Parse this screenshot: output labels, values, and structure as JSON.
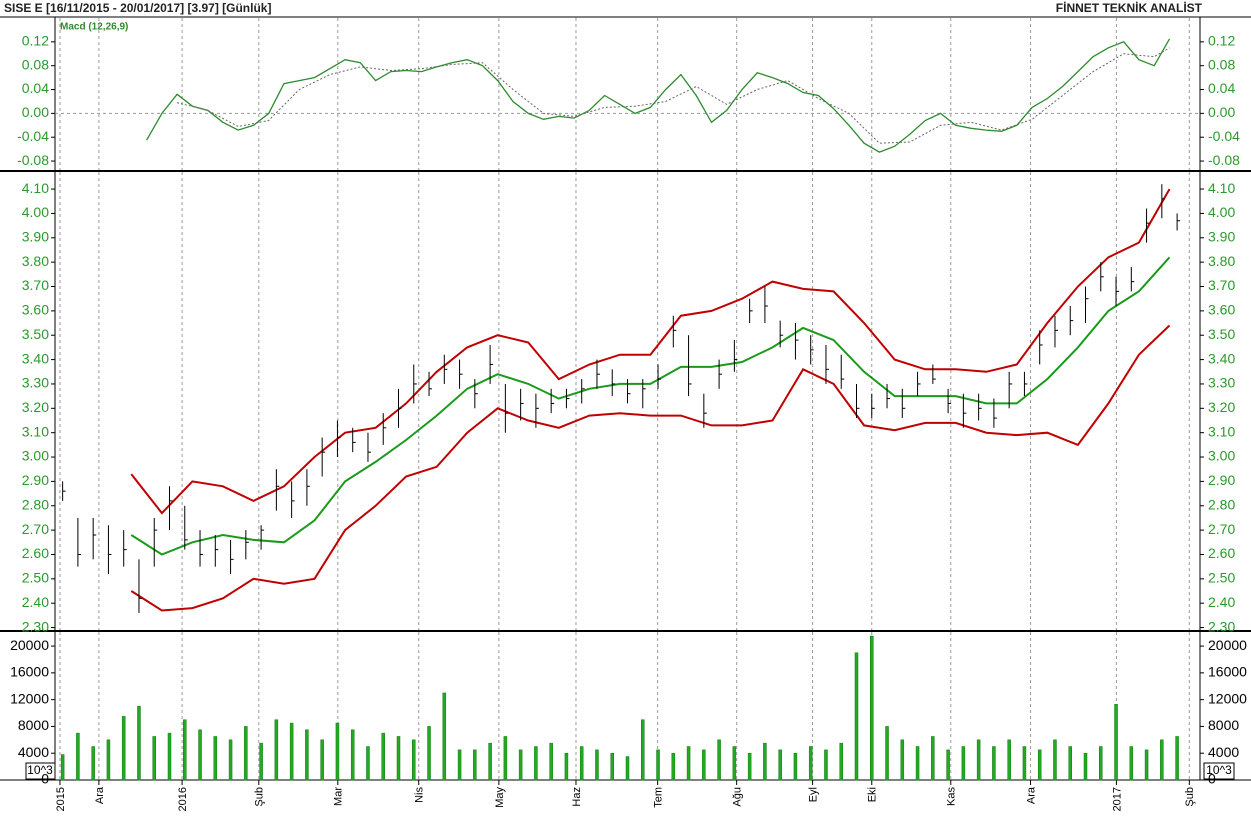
{
  "header": {
    "title": "SISE  E  [16/11/2015 - 20/01/2017]  [3.97]  [Günlük]",
    "brand": "FİNNET TEKNİK ANALİST"
  },
  "chart_data": [
    {
      "type": "line",
      "title": "Macd (12,26,9)",
      "ylim": [
        -0.095,
        0.16
      ],
      "yticks": [
        -0.08,
        -0.04,
        {
          "value": 0,
          "label": "0.00"
        },
        0.04,
        0.08,
        0.12
      ],
      "series": [
        {
          "color": "#2e8b2e",
          "style": "solid",
          "x": [
            24,
            28,
            32,
            36,
            40,
            44,
            48,
            52,
            56,
            60,
            64,
            68,
            72,
            76,
            80,
            84,
            88,
            92,
            96,
            100,
            104,
            108,
            112,
            116,
            120,
            124,
            128,
            132,
            136,
            140,
            144,
            148,
            152,
            156,
            160,
            164,
            168,
            172,
            176,
            180,
            184,
            188,
            192,
            196,
            200,
            204,
            208,
            212,
            216,
            220,
            224,
            228,
            232,
            236,
            240,
            244,
            248,
            252,
            256,
            260,
            264,
            268,
            272,
            276,
            280,
            284,
            288,
            292
          ],
          "values": [
            -0.045,
            0.0,
            0.032,
            0.012,
            0.005,
            -0.015,
            -0.028,
            -0.02,
            0.0,
            0.05,
            0.055,
            0.06,
            0.075,
            0.09,
            0.085,
            0.055,
            0.07,
            0.072,
            0.07,
            0.078,
            0.085,
            0.09,
            0.08,
            0.055,
            0.02,
            0.0,
            -0.01,
            -0.005,
            -0.008,
            0.005,
            0.03,
            0.015,
            0.0,
            0.01,
            0.04,
            0.065,
            0.03,
            -0.015,
            0.005,
            0.04,
            0.068,
            0.06,
            0.05,
            0.035,
            0.03,
            0.008,
            -0.02,
            -0.05,
            -0.065,
            -0.055,
            -0.035,
            -0.012,
            0.0,
            -0.02,
            -0.025,
            -0.028,
            -0.03,
            -0.02,
            0.01,
            0.025,
            0.045,
            0.07,
            0.095,
            0.11,
            0.12,
            0.09,
            0.08,
            0.125
          ]
        },
        {
          "color": "#666666",
          "style": "dotted",
          "x": [
            32,
            40,
            48,
            56,
            64,
            72,
            80,
            88,
            96,
            104,
            112,
            120,
            128,
            136,
            144,
            152,
            160,
            168,
            176,
            184,
            192,
            200,
            208,
            216,
            224,
            232,
            240,
            248,
            256,
            264,
            272,
            280,
            288,
            292
          ],
          "values": [
            0.018,
            0.005,
            -0.022,
            -0.012,
            0.04,
            0.065,
            0.078,
            0.072,
            0.075,
            0.082,
            0.085,
            0.04,
            0.0,
            -0.005,
            0.01,
            0.012,
            0.02,
            0.045,
            0.015,
            0.04,
            0.055,
            0.025,
            0.0,
            -0.05,
            -0.048,
            -0.02,
            -0.015,
            -0.028,
            -0.01,
            0.03,
            0.07,
            0.1,
            0.095,
            0.11
          ]
        }
      ]
    },
    {
      "type": "ohlc",
      "color": "#000000",
      "ylim": [
        2.29,
        4.17
      ],
      "yticks": [
        {
          "value": 2.3,
          "label": "2.30"
        },
        {
          "value": 2.4,
          "label": "2.40"
        },
        {
          "value": 2.5,
          "label": "2.50"
        },
        {
          "value": 2.6,
          "label": "2.60"
        },
        {
          "value": 2.7,
          "label": "2.70"
        },
        {
          "value": 2.8,
          "label": "2.80"
        },
        {
          "value": 2.9,
          "label": "2.90"
        },
        {
          "value": 3.0,
          "label": "3.00"
        },
        {
          "value": 3.1,
          "label": "3.10"
        },
        {
          "value": 3.2,
          "label": "3.20"
        },
        {
          "value": 3.3,
          "label": "3.30"
        },
        {
          "value": 3.4,
          "label": "3.40"
        },
        {
          "value": 3.5,
          "label": "3.50"
        },
        {
          "value": 3.6,
          "label": "3.60"
        },
        {
          "value": 3.7,
          "label": "3.70"
        },
        {
          "value": 3.8,
          "label": "3.80"
        },
        {
          "value": 3.9,
          "label": "3.90"
        },
        {
          "value": 4.0,
          "label": "4.00"
        },
        {
          "value": 4.1,
          "label": "4.10"
        }
      ],
      "x": [
        2,
        6,
        10,
        14,
        18,
        22,
        26,
        30,
        34,
        38,
        42,
        46,
        50,
        54,
        58,
        62,
        66,
        70,
        74,
        78,
        82,
        86,
        90,
        94,
        98,
        102,
        106,
        110,
        114,
        118,
        122,
        126,
        130,
        134,
        138,
        142,
        146,
        150,
        154,
        158,
        162,
        166,
        170,
        174,
        178,
        182,
        186,
        190,
        194,
        198,
        202,
        206,
        210,
        214,
        218,
        222,
        226,
        230,
        234,
        238,
        242,
        246,
        250,
        254,
        258,
        262,
        266,
        270,
        274,
        278,
        282,
        286,
        290,
        294
      ],
      "high": [
        2.9,
        2.75,
        2.75,
        2.72,
        2.7,
        2.58,
        2.75,
        2.88,
        2.8,
        2.7,
        2.68,
        2.66,
        2.7,
        2.72,
        2.95,
        2.9,
        2.95,
        3.08,
        3.15,
        3.12,
        3.1,
        3.18,
        3.28,
        3.38,
        3.35,
        3.42,
        3.4,
        3.32,
        3.46,
        3.3,
        3.28,
        3.26,
        3.28,
        3.28,
        3.32,
        3.4,
        3.36,
        3.32,
        3.32,
        3.38,
        3.58,
        3.5,
        3.26,
        3.4,
        3.48,
        3.65,
        3.7,
        3.56,
        3.55,
        3.5,
        3.46,
        3.42,
        3.3,
        3.26,
        3.3,
        3.28,
        3.35,
        3.38,
        3.28,
        3.26,
        3.26,
        3.24,
        3.35,
        3.35,
        3.52,
        3.58,
        3.62,
        3.7,
        3.8,
        3.74,
        3.78,
        4.02,
        4.12,
        4.0
      ],
      "low": [
        2.82,
        2.55,
        2.58,
        2.52,
        2.55,
        2.36,
        2.55,
        2.7,
        2.62,
        2.55,
        2.55,
        2.52,
        2.58,
        2.62,
        2.78,
        2.75,
        2.8,
        2.92,
        3.0,
        3.02,
        2.98,
        3.05,
        3.12,
        3.22,
        3.25,
        3.3,
        3.28,
        3.2,
        3.3,
        3.1,
        3.15,
        3.12,
        3.18,
        3.2,
        3.22,
        3.28,
        3.25,
        3.22,
        3.2,
        3.28,
        3.45,
        3.25,
        3.12,
        3.28,
        3.35,
        3.55,
        3.55,
        3.45,
        3.4,
        3.38,
        3.3,
        3.28,
        3.16,
        3.16,
        3.2,
        3.16,
        3.25,
        3.3,
        3.18,
        3.12,
        3.15,
        3.12,
        3.2,
        3.25,
        3.38,
        3.45,
        3.5,
        3.55,
        3.68,
        3.62,
        3.68,
        3.88,
        3.98,
        3.93
      ],
      "close": [
        2.86,
        2.6,
        2.68,
        2.6,
        2.62,
        2.42,
        2.7,
        2.82,
        2.66,
        2.6,
        2.62,
        2.58,
        2.65,
        2.7,
        2.88,
        2.82,
        2.88,
        3.02,
        3.08,
        3.06,
        3.02,
        3.12,
        3.2,
        3.3,
        3.28,
        3.36,
        3.34,
        3.26,
        3.38,
        3.18,
        3.22,
        3.2,
        3.22,
        3.24,
        3.28,
        3.34,
        3.3,
        3.26,
        3.28,
        3.32,
        3.52,
        3.3,
        3.18,
        3.34,
        3.4,
        3.6,
        3.62,
        3.5,
        3.48,
        3.44,
        3.36,
        3.32,
        3.2,
        3.2,
        3.24,
        3.2,
        3.3,
        3.32,
        3.22,
        3.18,
        3.2,
        3.16,
        3.3,
        3.3,
        3.46,
        3.52,
        3.56,
        3.65,
        3.74,
        3.68,
        3.72,
        3.96,
        4.06,
        3.97
      ],
      "overlays": [
        {
          "color": "#c00000",
          "x": [
            20,
            28,
            36,
            44,
            52,
            60,
            68,
            76,
            84,
            92,
            100,
            108,
            116,
            124,
            132,
            140,
            148,
            156,
            164,
            172,
            180,
            188,
            196,
            204,
            212,
            220,
            228,
            236,
            244,
            252,
            260,
            268,
            276,
            284,
            292
          ],
          "values": [
            2.93,
            2.77,
            2.9,
            2.88,
            2.82,
            2.88,
            3.0,
            3.1,
            3.12,
            3.22,
            3.35,
            3.45,
            3.5,
            3.47,
            3.32,
            3.38,
            3.42,
            3.42,
            3.58,
            3.6,
            3.65,
            3.72,
            3.69,
            3.68,
            3.55,
            3.4,
            3.36,
            3.36,
            3.35,
            3.38,
            3.55,
            3.7,
            3.82,
            3.88,
            4.1
          ]
        },
        {
          "color": "#1a9a1a",
          "x": [
            20,
            28,
            36,
            44,
            52,
            60,
            68,
            76,
            84,
            92,
            100,
            108,
            116,
            124,
            132,
            140,
            148,
            156,
            164,
            172,
            180,
            188,
            196,
            204,
            212,
            220,
            228,
            236,
            244,
            252,
            260,
            268,
            276,
            284,
            292
          ],
          "values": [
            2.68,
            2.6,
            2.65,
            2.68,
            2.66,
            2.65,
            2.74,
            2.9,
            2.98,
            3.07,
            3.17,
            3.28,
            3.34,
            3.3,
            3.24,
            3.28,
            3.3,
            3.3,
            3.37,
            3.37,
            3.39,
            3.45,
            3.53,
            3.48,
            3.35,
            3.25,
            3.25,
            3.25,
            3.22,
            3.22,
            3.32,
            3.45,
            3.6,
            3.68,
            3.82
          ]
        },
        {
          "color": "#c00000",
          "x": [
            20,
            28,
            36,
            44,
            52,
            60,
            68,
            76,
            84,
            92,
            100,
            108,
            116,
            124,
            132,
            140,
            148,
            156,
            164,
            172,
            180,
            188,
            196,
            204,
            212,
            220,
            228,
            236,
            244,
            252,
            260,
            268,
            276,
            284,
            292
          ],
          "values": [
            2.45,
            2.37,
            2.38,
            2.42,
            2.5,
            2.48,
            2.5,
            2.7,
            2.8,
            2.92,
            2.96,
            3.1,
            3.2,
            3.15,
            3.12,
            3.17,
            3.18,
            3.17,
            3.17,
            3.13,
            3.13,
            3.15,
            3.36,
            3.3,
            3.13,
            3.11,
            3.14,
            3.14,
            3.1,
            3.09,
            3.1,
            3.05,
            3.22,
            3.42,
            3.54
          ]
        }
      ]
    },
    {
      "type": "bar",
      "color": "#22aa22",
      "unit_label": "10^3",
      "ylim": [
        0,
        22100
      ],
      "yticks": [
        0,
        4000,
        8000,
        12000,
        16000,
        20000
      ],
      "xlim": [
        0,
        300
      ],
      "xticks": [
        {
          "value": 1.3,
          "label": "2015"
        },
        {
          "value": 11.5,
          "label": "Ara"
        },
        {
          "value": 33.3,
          "label": "2016"
        },
        {
          "value": 53.4,
          "label": "Şub"
        },
        {
          "value": 74.1,
          "label": "Mar"
        },
        {
          "value": 95.3,
          "label": "Nis"
        },
        {
          "value": 116.3,
          "label": "May"
        },
        {
          "value": 136.5,
          "label": "Haz"
        },
        {
          "value": 157.9,
          "label": "Tem"
        },
        {
          "value": 178.6,
          "label": "Ağu"
        },
        {
          "value": 198.5,
          "label": "Eyl"
        },
        {
          "value": 214,
          "label": "Eki"
        },
        {
          "value": 234.7,
          "label": "Kas"
        },
        {
          "value": 255.6,
          "label": "Ara"
        },
        {
          "value": 278.1,
          "label": "2017"
        },
        {
          "value": 297.2,
          "label": "Şub"
        }
      ],
      "x": [
        2,
        6,
        10,
        14,
        18,
        22,
        26,
        30,
        34,
        38,
        42,
        46,
        50,
        54,
        58,
        62,
        66,
        70,
        74,
        78,
        82,
        86,
        90,
        94,
        98,
        102,
        106,
        110,
        114,
        118,
        122,
        126,
        130,
        134,
        138,
        142,
        146,
        150,
        154,
        158,
        162,
        166,
        170,
        174,
        178,
        182,
        186,
        190,
        194,
        198,
        202,
        206,
        210,
        214,
        218,
        222,
        226,
        230,
        234,
        238,
        242,
        246,
        250,
        254,
        258,
        262,
        266,
        270,
        274,
        278,
        282,
        286,
        290,
        294
      ],
      "values": [
        3800,
        7000,
        5000,
        6000,
        9500,
        11000,
        6500,
        7000,
        9000,
        7500,
        6500,
        6000,
        8000,
        5500,
        9000,
        8500,
        7500,
        6000,
        8500,
        7500,
        5000,
        7000,
        6500,
        6000,
        8000,
        13000,
        4500,
        4500,
        5500,
        6500,
        4500,
        5000,
        5500,
        4000,
        5000,
        4500,
        4000,
        3500,
        9000,
        4500,
        4000,
        5000,
        4500,
        6000,
        5000,
        4000,
        5500,
        4500,
        4000,
        5000,
        4500,
        5500,
        19000,
        21500,
        8000,
        6000,
        5000,
        6500,
        4500,
        5000,
        6000,
        5000,
        6000,
        5000,
        4500,
        6000,
        5000,
        4000,
        5000,
        11300,
        5000,
        4500,
        6000,
        6500
      ]
    }
  ]
}
